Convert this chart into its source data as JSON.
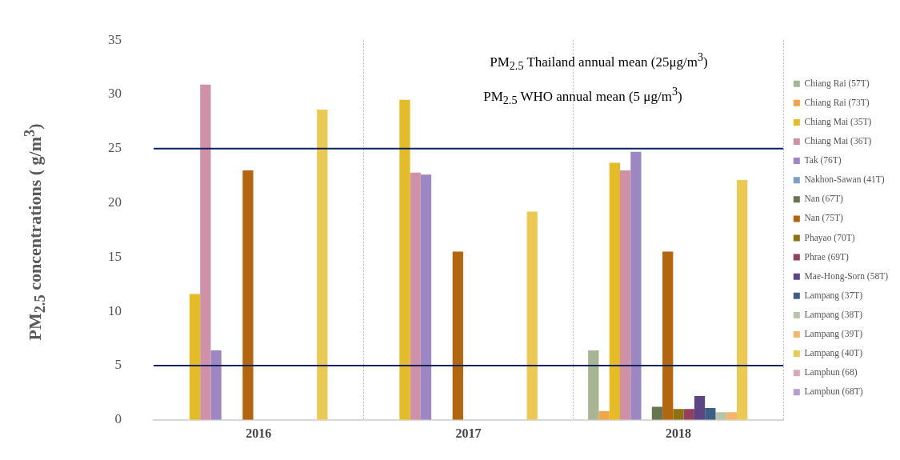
{
  "chart_data": {
    "type": "bar",
    "ylabel": "PM$_{2.5}$ concentrations ( g/m$^{3}$)",
    "categories": [
      "2016",
      "2017",
      "2018"
    ],
    "ylim": [
      0,
      35
    ],
    "yticks": [
      0,
      5,
      10,
      15,
      20,
      25,
      30,
      35
    ],
    "grid": "x",
    "legend": "right",
    "ref_lines": [
      {
        "axis": "y",
        "value": 25,
        "color": "#0d2260"
      },
      {
        "axis": "y",
        "value": 5,
        "color": "#0d2260"
      }
    ],
    "annotations": [
      "PM$_{2.5}$ Thailand annual mean (25μg/m$^{3}$)",
      "PM$_{2.5}$ WHO annual mean (5 μg/m$^{3}$)"
    ],
    "series": [
      {
        "name": "Chiang Rai (57T)",
        "color": "#a7b592",
        "values": [
          null,
          null,
          6.4
        ]
      },
      {
        "name": "Chiang Rai (73T)",
        "color": "#f2a446",
        "values": [
          null,
          null,
          0.8
        ]
      },
      {
        "name": "Chiang Mai (35T)",
        "color": "#e4bb29",
        "values": [
          11.6,
          29.5,
          23.7
        ]
      },
      {
        "name": "Chiang Mai (36T)",
        "color": "#cf91a7",
        "values": [
          30.9,
          22.8,
          23.0
        ]
      },
      {
        "name": "Tak (76T)",
        "color": "#9d87c2",
        "values": [
          6.4,
          22.6,
          24.7
        ]
      },
      {
        "name": "Nakhon-Sawan (41T)",
        "color": "#7d9fc4",
        "values": [
          null,
          null,
          null
        ]
      },
      {
        "name": "Nan (67T)",
        "color": "#667551",
        "values": [
          null,
          null,
          1.2
        ]
      },
      {
        "name": "Nan (75T)",
        "color": "#b2660f",
        "values": [
          23.0,
          15.5,
          15.5
        ]
      },
      {
        "name": "Phayao (70T)",
        "color": "#8d7214",
        "values": [
          null,
          null,
          1.0
        ]
      },
      {
        "name": "Phrae (69T)",
        "color": "#933f5e",
        "values": [
          null,
          null,
          1.0
        ]
      },
      {
        "name": "Mae-Hong-Sorn (58T)",
        "color": "#5c4584",
        "values": [
          null,
          null,
          2.2
        ]
      },
      {
        "name": "Lampang (37T)",
        "color": "#3d5e85",
        "values": [
          null,
          null,
          1.1
        ]
      },
      {
        "name": "Lampang (38T)",
        "color": "#b7c4a8",
        "values": [
          null,
          null,
          0.7
        ]
      },
      {
        "name": "Lampang (39T)",
        "color": "#f4b56f",
        "values": [
          null,
          null,
          0.7
        ]
      },
      {
        "name": "Lampang (40T)",
        "color": "#ebc955",
        "values": [
          28.6,
          19.2,
          22.1
        ]
      },
      {
        "name": "Lamphun (68)",
        "color": "#d9a7b8",
        "values": [
          null,
          null,
          null
        ]
      },
      {
        "name": "Lamphun (68T)",
        "color": "#b2a1d0",
        "values": [
          null,
          null,
          null
        ]
      }
    ]
  }
}
